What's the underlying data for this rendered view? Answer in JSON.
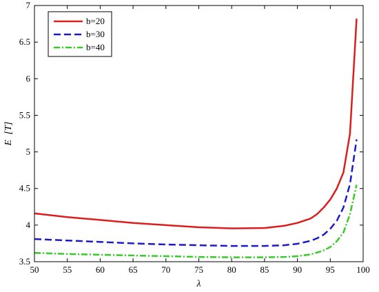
{
  "chart_data": {
    "type": "line",
    "title": "",
    "xlabel": "λ",
    "ylabel_var": "E",
    "ylabel_unit": "[T]",
    "xlim": [
      50,
      100
    ],
    "ylim": [
      3.5,
      7
    ],
    "xticks": [
      50,
      55,
      60,
      65,
      70,
      75,
      80,
      85,
      90,
      95,
      100
    ],
    "yticks": [
      3.5,
      4,
      4.5,
      5,
      5.5,
      6,
      6.5,
      7
    ],
    "xtick_labels": [
      "50",
      "55",
      "60",
      "65",
      "70",
      "75",
      "80",
      "85",
      "90",
      "95",
      "100"
    ],
    "ytick_labels": [
      "3.5",
      "4",
      "4.5",
      "5",
      "5.5",
      "6",
      "6.5",
      "7"
    ],
    "grid": false,
    "legend_position": "top-left",
    "series": [
      {
        "name": "b=20",
        "color": "#dd1c1c",
        "dash": "solid",
        "x": [
          50,
          55,
          60,
          65,
          70,
          75,
          80,
          85,
          88,
          90,
          92,
          93,
          94,
          95,
          96,
          97,
          98,
          99
        ],
        "y": [
          4.16,
          4.11,
          4.07,
          4.03,
          4.0,
          3.97,
          3.955,
          3.96,
          3.99,
          4.03,
          4.09,
          4.15,
          4.24,
          4.35,
          4.5,
          4.72,
          5.25,
          6.82
        ]
      },
      {
        "name": "b=30",
        "color": "#1a1acc",
        "dash": "dashed",
        "x": [
          50,
          55,
          60,
          65,
          70,
          75,
          80,
          85,
          88,
          90,
          92,
          93,
          94,
          95,
          96,
          97,
          98,
          99
        ],
        "y": [
          3.81,
          3.79,
          3.77,
          3.75,
          3.735,
          3.725,
          3.715,
          3.715,
          3.725,
          3.745,
          3.785,
          3.82,
          3.87,
          3.95,
          4.06,
          4.24,
          4.56,
          5.17
        ]
      },
      {
        "name": "b=40",
        "color": "#33cc22",
        "dash": "dashdot",
        "x": [
          50,
          55,
          60,
          65,
          70,
          75,
          80,
          85,
          88,
          90,
          92,
          93,
          94,
          95,
          96,
          97,
          98,
          99
        ],
        "y": [
          3.62,
          3.605,
          3.595,
          3.585,
          3.575,
          3.565,
          3.56,
          3.56,
          3.565,
          3.575,
          3.6,
          3.625,
          3.655,
          3.7,
          3.78,
          3.9,
          4.15,
          4.55
        ]
      }
    ]
  }
}
